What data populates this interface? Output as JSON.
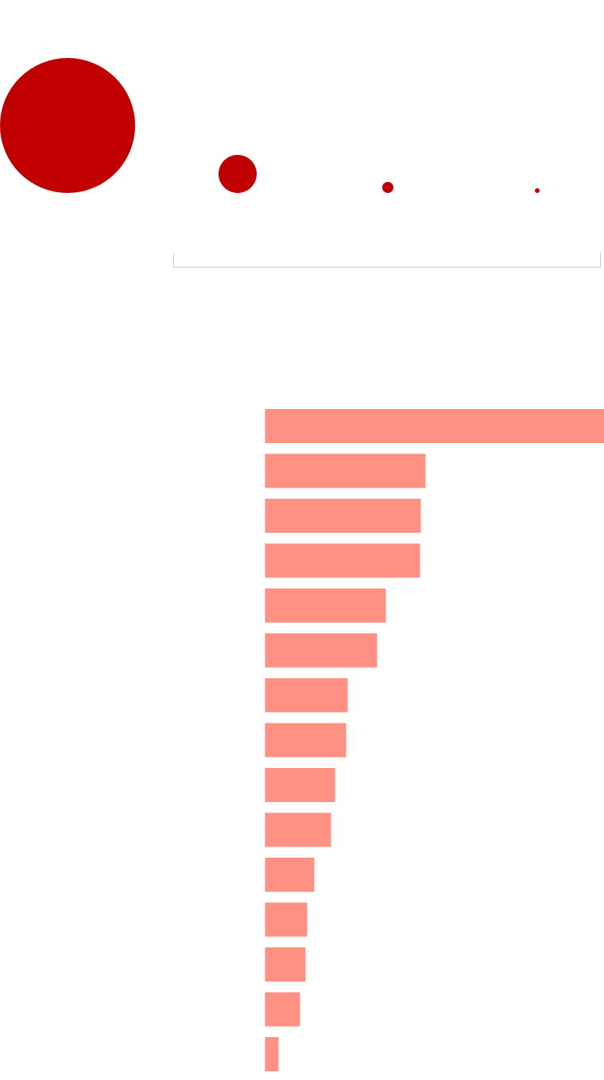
{
  "chart_data": [
    {
      "type": "bubble",
      "values": [
        7225,
        576,
        49,
        9
      ],
      "color": "#c00000"
    },
    {
      "type": "bar",
      "orientation": "horizontal",
      "categories": [
        null,
        null,
        null,
        null,
        null,
        null,
        null,
        null,
        null,
        null,
        null,
        null,
        null,
        null,
        null
      ],
      "values": [
        427,
        202,
        196,
        195,
        152,
        141,
        104,
        102,
        88,
        83,
        62,
        53,
        51,
        44,
        17
      ],
      "color": "#ff9184"
    }
  ]
}
